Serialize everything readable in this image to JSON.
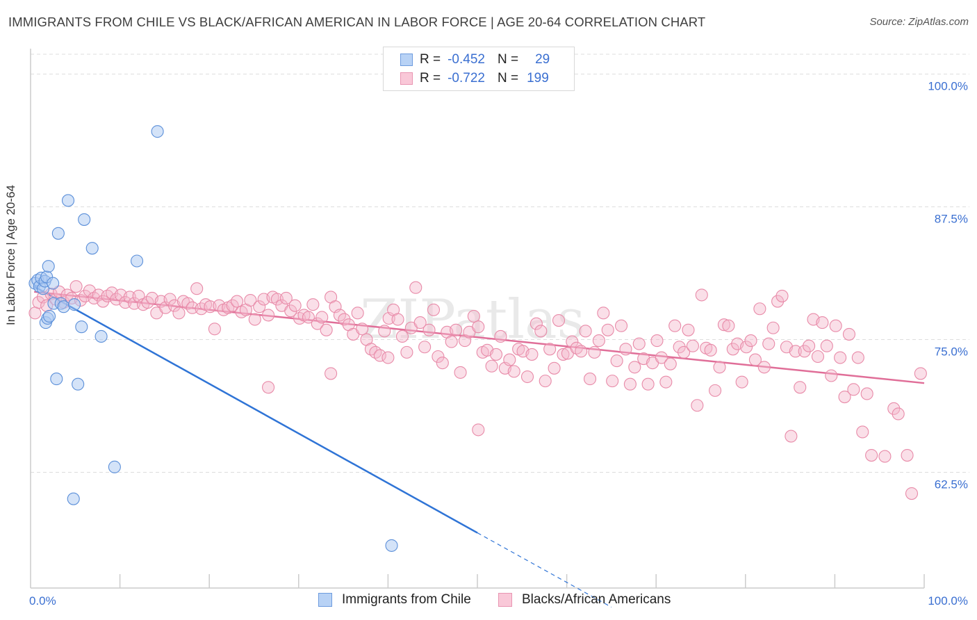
{
  "header": {
    "title": "IMMIGRANTS FROM CHILE VS BLACK/AFRICAN AMERICAN IN LABOR FORCE | AGE 20-64 CORRELATION CHART",
    "source": "Source: ZipAtlas.com"
  },
  "legend": {
    "row1": {
      "r_label": "R =",
      "r_value": "-0.452",
      "n_label": "N =",
      "n_value": "29"
    },
    "row2": {
      "r_label": "R =",
      "r_value": "-0.722",
      "n_label": "N =",
      "n_value": "199"
    }
  },
  "bottom_legend": {
    "series1": "Immigrants from Chile",
    "series2": "Blacks/African Americans"
  },
  "colors": {
    "blue_fill": "#a9c8f2",
    "blue_stroke": "#5b8fd9",
    "blue_line": "#2f74d6",
    "pink_fill": "#f5b7cb",
    "pink_stroke": "#e88aa8",
    "pink_line": "#e06e98",
    "tick_label": "#3a6fd1",
    "grid": "#dddddd"
  },
  "chart_data": {
    "type": "scatter",
    "title": "IMMIGRANTS FROM CHILE VS BLACK/AFRICAN AMERICAN IN LABOR FORCE | AGE 20-64 CORRELATION CHART",
    "xlabel": "",
    "ylabel": "In Labor Force | Age 20-64",
    "xlim": [
      0,
      100
    ],
    "ylim": [
      51.6,
      102.4
    ],
    "x_tick_labels": [
      "0.0%",
      "100.0%"
    ],
    "y_ticks": [
      62.5,
      75.0,
      87.5,
      100.0
    ],
    "y_tick_labels": [
      "62.5%",
      "75.0%",
      "87.5%",
      "100.0%"
    ],
    "grid": true,
    "legend_position": "top-center",
    "watermark": "ZIPatlas",
    "series": [
      {
        "name": "Immigrants from Chile",
        "r": -0.452,
        "n": 29,
        "trend": {
          "x": [
            0.4,
            50.0
          ],
          "y": [
            80.0,
            56.8
          ],
          "dashed_to": [
            65.0,
            49.8
          ]
        },
        "points": [
          [
            0.5,
            80.3
          ],
          [
            0.8,
            80.6
          ],
          [
            1.0,
            80.0
          ],
          [
            1.2,
            80.8
          ],
          [
            1.4,
            79.8
          ],
          [
            1.6,
            80.5
          ],
          [
            1.8,
            80.9
          ],
          [
            1.7,
            76.6
          ],
          [
            1.9,
            77.0
          ],
          [
            2.1,
            77.2
          ],
          [
            2.0,
            81.9
          ],
          [
            2.5,
            80.3
          ],
          [
            2.6,
            78.4
          ],
          [
            2.9,
            71.3
          ],
          [
            3.1,
            85.0
          ],
          [
            3.4,
            78.4
          ],
          [
            3.7,
            78.1
          ],
          [
            4.2,
            88.1
          ],
          [
            4.9,
            78.3
          ],
          [
            5.3,
            70.8
          ],
          [
            5.7,
            76.2
          ],
          [
            6.0,
            86.3
          ],
          [
            6.9,
            83.6
          ],
          [
            7.9,
            75.3
          ],
          [
            9.4,
            63.0
          ],
          [
            11.9,
            82.4
          ],
          [
            14.2,
            94.6
          ],
          [
            4.8,
            60.0
          ],
          [
            40.4,
            55.6
          ]
        ]
      },
      {
        "name": "Blacks/African Americans",
        "r": -0.722,
        "n": 199,
        "trend": {
          "x": [
            0.4,
            100.0
          ],
          "y": [
            79.5,
            70.9
          ]
        },
        "points": [
          [
            0.5,
            77.5
          ],
          [
            0.9,
            78.5
          ],
          [
            1.4,
            79.0
          ],
          [
            1.8,
            78.2
          ],
          [
            2.3,
            79.3
          ],
          [
            2.8,
            78.8
          ],
          [
            3.2,
            79.5
          ],
          [
            3.7,
            78.5
          ],
          [
            4.1,
            79.2
          ],
          [
            4.6,
            78.9
          ],
          [
            5.1,
            80.0
          ],
          [
            5.6,
            78.7
          ],
          [
            6.1,
            79.1
          ],
          [
            6.6,
            79.6
          ],
          [
            7.1,
            78.9
          ],
          [
            7.6,
            79.2
          ],
          [
            8.1,
            78.6
          ],
          [
            8.6,
            79.1
          ],
          [
            9.1,
            79.4
          ],
          [
            9.6,
            78.8
          ],
          [
            10.1,
            79.2
          ],
          [
            10.6,
            78.5
          ],
          [
            11.1,
            79.0
          ],
          [
            11.6,
            78.4
          ],
          [
            12.1,
            79.1
          ],
          [
            12.6,
            78.3
          ],
          [
            13.1,
            78.5
          ],
          [
            13.6,
            78.9
          ],
          [
            14.1,
            77.5
          ],
          [
            14.6,
            78.6
          ],
          [
            15.1,
            78.0
          ],
          [
            15.6,
            78.8
          ],
          [
            16.1,
            78.2
          ],
          [
            16.6,
            77.5
          ],
          [
            17.1,
            78.6
          ],
          [
            17.6,
            78.4
          ],
          [
            18.1,
            78.0
          ],
          [
            18.6,
            79.8
          ],
          [
            19.1,
            77.9
          ],
          [
            19.6,
            78.3
          ],
          [
            20.1,
            78.1
          ],
          [
            20.6,
            76.0
          ],
          [
            21.1,
            78.2
          ],
          [
            21.6,
            77.8
          ],
          [
            22.1,
            78.0
          ],
          [
            22.6,
            78.2
          ],
          [
            23.1,
            78.6
          ],
          [
            23.6,
            77.6
          ],
          [
            24.1,
            77.8
          ],
          [
            24.6,
            78.7
          ],
          [
            25.1,
            76.9
          ],
          [
            25.6,
            78.1
          ],
          [
            26.1,
            78.8
          ],
          [
            26.6,
            77.3
          ],
          [
            27.1,
            79.0
          ],
          [
            27.6,
            78.8
          ],
          [
            28.1,
            78.2
          ],
          [
            28.6,
            78.9
          ],
          [
            29.1,
            77.7
          ],
          [
            29.6,
            78.2
          ],
          [
            30.1,
            77.0
          ],
          [
            30.6,
            77.3
          ],
          [
            31.1,
            77.1
          ],
          [
            31.6,
            78.3
          ],
          [
            32.1,
            76.5
          ],
          [
            32.6,
            77.1
          ],
          [
            33.1,
            75.9
          ],
          [
            33.6,
            79.0
          ],
          [
            34.1,
            78.1
          ],
          [
            34.6,
            77.3
          ],
          [
            35.1,
            76.9
          ],
          [
            35.6,
            76.4
          ],
          [
            36.1,
            75.5
          ],
          [
            36.6,
            77.5
          ],
          [
            37.1,
            76.0
          ],
          [
            37.6,
            75.0
          ],
          [
            38.1,
            74.1
          ],
          [
            38.6,
            73.8
          ],
          [
            39.1,
            73.5
          ],
          [
            39.6,
            75.8
          ],
          [
            40.1,
            77.0
          ],
          [
            40.6,
            77.8
          ],
          [
            41.1,
            76.9
          ],
          [
            41.6,
            75.3
          ],
          [
            42.1,
            73.8
          ],
          [
            42.6,
            76.1
          ],
          [
            43.1,
            79.9
          ],
          [
            43.6,
            76.6
          ],
          [
            44.1,
            74.3
          ],
          [
            44.6,
            75.9
          ],
          [
            45.1,
            77.8
          ],
          [
            45.6,
            73.4
          ],
          [
            46.1,
            72.8
          ],
          [
            46.6,
            75.7
          ],
          [
            47.1,
            74.8
          ],
          [
            47.6,
            75.9
          ],
          [
            48.1,
            71.9
          ],
          [
            48.6,
            74.9
          ],
          [
            49.1,
            75.7
          ],
          [
            49.6,
            77.2
          ],
          [
            50.1,
            76.2
          ],
          [
            50.6,
            73.8
          ],
          [
            51.1,
            74.0
          ],
          [
            51.6,
            72.5
          ],
          [
            52.1,
            73.6
          ],
          [
            52.6,
            75.3
          ],
          [
            53.1,
            72.3
          ],
          [
            53.6,
            73.1
          ],
          [
            54.1,
            72.0
          ],
          [
            54.6,
            74.1
          ],
          [
            55.1,
            73.9
          ],
          [
            55.6,
            71.5
          ],
          [
            56.1,
            73.6
          ],
          [
            56.6,
            76.5
          ],
          [
            57.1,
            75.8
          ],
          [
            57.6,
            71.1
          ],
          [
            58.1,
            74.1
          ],
          [
            58.6,
            72.3
          ],
          [
            59.1,
            76.8
          ],
          [
            59.6,
            73.6
          ],
          [
            60.1,
            73.7
          ],
          [
            60.6,
            74.8
          ],
          [
            61.1,
            74.2
          ],
          [
            61.6,
            73.9
          ],
          [
            62.1,
            75.8
          ],
          [
            62.6,
            71.3
          ],
          [
            63.1,
            73.8
          ],
          [
            63.6,
            74.9
          ],
          [
            64.1,
            77.5
          ],
          [
            64.6,
            75.9
          ],
          [
            65.1,
            71.1
          ],
          [
            65.6,
            73.0
          ],
          [
            66.1,
            76.3
          ],
          [
            66.6,
            74.1
          ],
          [
            67.1,
            70.8
          ],
          [
            67.6,
            72.4
          ],
          [
            68.1,
            74.6
          ],
          [
            68.6,
            73.2
          ],
          [
            69.1,
            70.8
          ],
          [
            69.6,
            72.8
          ],
          [
            70.1,
            74.9
          ],
          [
            70.6,
            73.3
          ],
          [
            71.1,
            71.0
          ],
          [
            71.6,
            72.7
          ],
          [
            72.1,
            76.3
          ],
          [
            72.6,
            74.3
          ],
          [
            73.1,
            73.8
          ],
          [
            73.6,
            75.9
          ],
          [
            74.1,
            74.4
          ],
          [
            74.6,
            68.8
          ],
          [
            75.1,
            79.2
          ],
          [
            75.6,
            74.2
          ],
          [
            76.1,
            74.0
          ],
          [
            76.6,
            70.2
          ],
          [
            77.1,
            72.4
          ],
          [
            77.6,
            76.4
          ],
          [
            78.1,
            76.3
          ],
          [
            78.6,
            74.1
          ],
          [
            79.1,
            74.6
          ],
          [
            79.6,
            71.0
          ],
          [
            80.1,
            74.3
          ],
          [
            80.6,
            74.9
          ],
          [
            81.1,
            73.1
          ],
          [
            81.6,
            77.9
          ],
          [
            82.1,
            72.4
          ],
          [
            82.6,
            74.6
          ],
          [
            83.1,
            76.1
          ],
          [
            83.6,
            78.6
          ],
          [
            84.1,
            79.1
          ],
          [
            84.6,
            74.3
          ],
          [
            85.1,
            65.9
          ],
          [
            85.6,
            73.9
          ],
          [
            86.1,
            70.5
          ],
          [
            86.6,
            73.9
          ],
          [
            87.1,
            74.4
          ],
          [
            87.6,
            76.9
          ],
          [
            88.1,
            73.4
          ],
          [
            88.6,
            76.6
          ],
          [
            89.1,
            74.4
          ],
          [
            89.6,
            71.6
          ],
          [
            90.1,
            76.3
          ],
          [
            90.6,
            73.3
          ],
          [
            91.1,
            69.6
          ],
          [
            91.6,
            75.5
          ],
          [
            92.1,
            70.3
          ],
          [
            92.6,
            73.3
          ],
          [
            93.1,
            66.3
          ],
          [
            93.6,
            69.9
          ],
          [
            94.1,
            64.1
          ],
          [
            95.6,
            64.0
          ],
          [
            96.6,
            68.5
          ],
          [
            97.1,
            68.0
          ],
          [
            98.1,
            64.1
          ],
          [
            98.6,
            60.5
          ],
          [
            99.6,
            71.8
          ],
          [
            40.0,
            73.3
          ],
          [
            50.1,
            66.5
          ],
          [
            33.6,
            71.8
          ],
          [
            26.6,
            70.5
          ]
        ]
      }
    ]
  }
}
